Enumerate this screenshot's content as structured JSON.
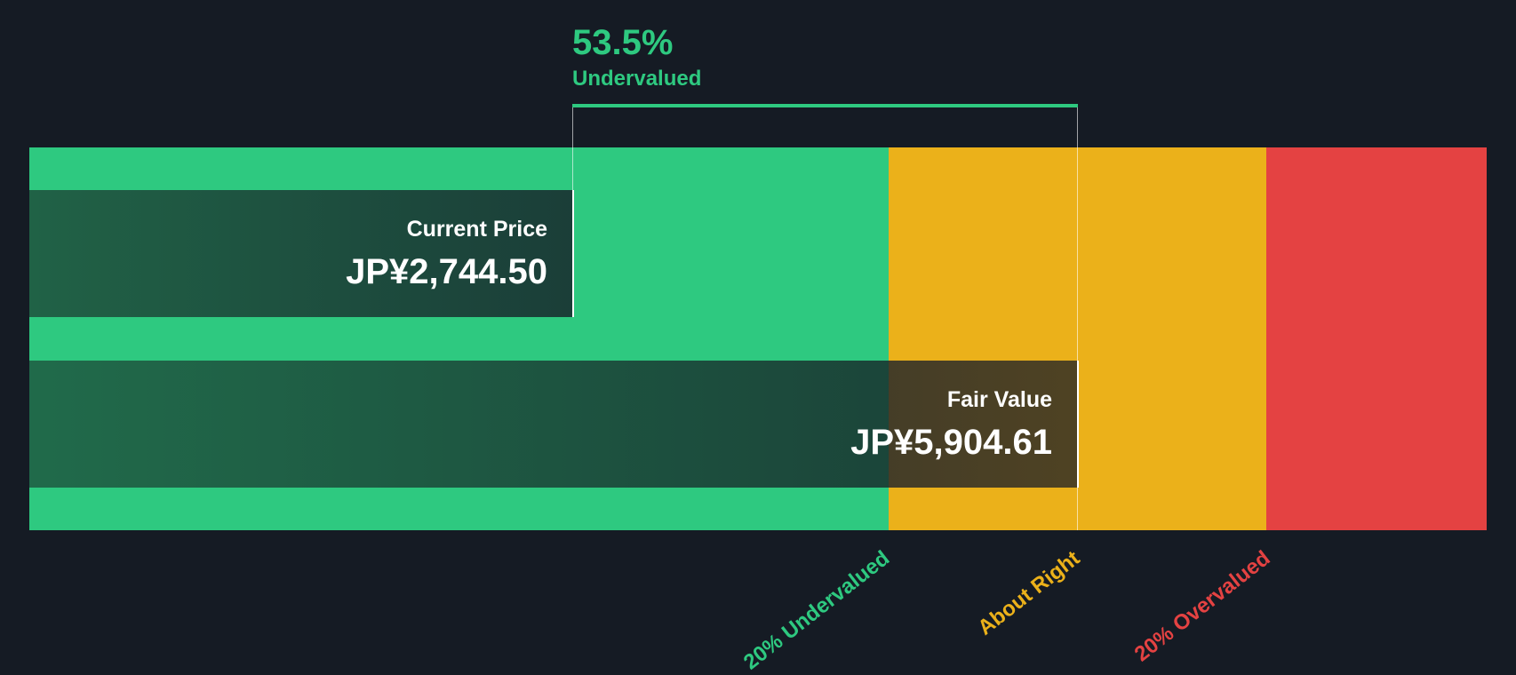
{
  "headline": {
    "percent": "53.5%",
    "label": "Undervalued"
  },
  "current_price": {
    "label": "Current Price",
    "value": "JP¥2,744.50"
  },
  "fair_value": {
    "label": "Fair Value",
    "value": "JP¥5,904.61"
  },
  "colors": {
    "green": "#2ec980",
    "yellow": "#ebb11a",
    "red": "#e44242",
    "background": "#151b24"
  },
  "chart_data": {
    "type": "bar",
    "title": "53.5% Undervalued",
    "categories": [
      "Current Price",
      "Fair Value"
    ],
    "values": [
      2744.5,
      5904.61
    ],
    "currency": "JP¥",
    "zones": [
      "20% Undervalued",
      "About Right",
      "20% Overvalued"
    ],
    "discount_percent": 53.5
  }
}
